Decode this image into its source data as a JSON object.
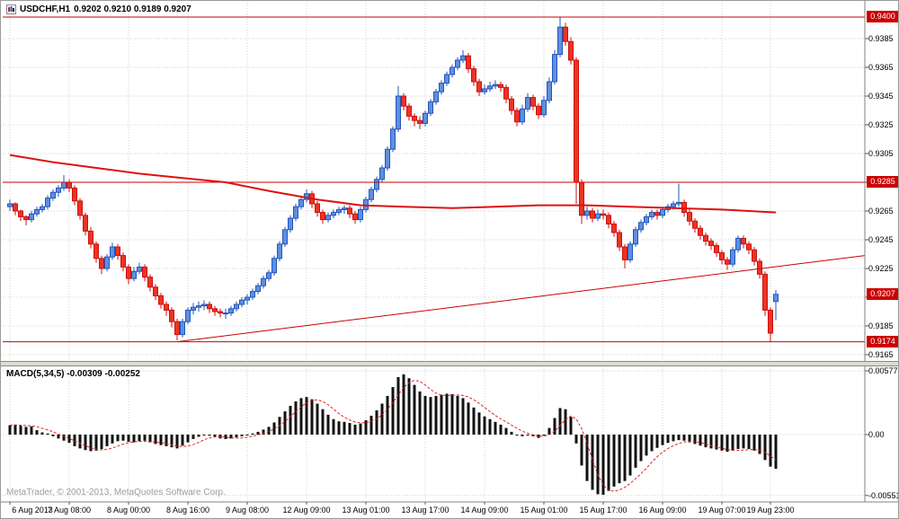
{
  "title": {
    "symbol_period": "USDCHF,H1",
    "ohlc": "0.9202 0.9210 0.9189 0.9207"
  },
  "indicator": {
    "name": "MACD(5,34,5)",
    "values": "-0.00309 -0.00252"
  },
  "watermark": "MetaTrader, © 2001-2013, MetaQuotes Software Corp.",
  "colors": {
    "bull_fill": "#5E8FE0",
    "bull_stroke": "#2255BB",
    "bear_fill": "#EE3322",
    "bear_stroke": "#CC1111",
    "line_red": "#CC0000",
    "ma_red": "#DD1111",
    "hist_black": "#111111",
    "signal_red": "#DD2222",
    "grid": "#D2D2D2",
    "badge_bg": "#CC0000"
  },
  "chart_data": {
    "type": "candlestick",
    "symbol": "USDCHF",
    "timeframe": "H1",
    "price_scale_factor": 0.0001,
    "price_axis": {
      "ticks": [
        {
          "p": 0.9385,
          "t": "0.9385"
        },
        {
          "p": 0.9365,
          "t": "0.9365"
        },
        {
          "p": 0.9345,
          "t": "0.9345"
        },
        {
          "p": 0.9325,
          "t": "0.9325"
        },
        {
          "p": 0.9305,
          "t": "0.9305"
        },
        {
          "p": 0.9285,
          "t": "0.9285"
        },
        {
          "p": 0.9265,
          "t": "0.9265"
        },
        {
          "p": 0.9245,
          "t": "0.9245"
        },
        {
          "p": 0.9225,
          "t": "0.9225"
        },
        {
          "p": 0.9205,
          "t": "0.9205"
        },
        {
          "p": 0.9185,
          "t": "0.9185"
        },
        {
          "p": 0.9165,
          "t": "0.9165"
        }
      ]
    },
    "price_badges": [
      {
        "p": 0.94,
        "t": "0.9400"
      },
      {
        "p": 0.9285,
        "t": "0.9285"
      },
      {
        "p": 0.9207,
        "t": "0.9207"
      },
      {
        "p": 0.9174,
        "t": "0.9174"
      }
    ],
    "bid": 0.9207,
    "hlines": [
      0.94,
      0.9285,
      0.9174
    ],
    "trendline": {
      "bar1": 31,
      "price1": 0.9174,
      "price2_at_plot_right": 0.9234
    },
    "ma_waypoints": [
      [
        0,
        9304
      ],
      [
        8,
        9299
      ],
      [
        16,
        9295
      ],
      [
        24,
        9291
      ],
      [
        32,
        9288
      ],
      [
        40,
        9285
      ],
      [
        48,
        9279
      ],
      [
        57,
        9273
      ],
      [
        65,
        9269
      ],
      [
        73,
        9268
      ],
      [
        82,
        9267
      ],
      [
        90,
        9268
      ],
      [
        98,
        9269
      ],
      [
        107,
        9269
      ],
      [
        115,
        9268
      ],
      [
        123,
        9267
      ],
      [
        132,
        9266
      ],
      [
        142,
        9264
      ]
    ],
    "time_axis": [
      {
        "bar": 0,
        "t": "6 Aug 2013"
      },
      {
        "bar": 11,
        "t": "7 Aug 08:00"
      },
      {
        "bar": 22,
        "t": "8 Aug 00:00"
      },
      {
        "bar": 33,
        "t": "8 Aug 16:00"
      },
      {
        "bar": 44,
        "t": "9 Aug 08:00"
      },
      {
        "bar": 55,
        "t": "12 Aug 09:00"
      },
      {
        "bar": 66,
        "t": "13 Aug 01:00"
      },
      {
        "bar": 77,
        "t": "13 Aug 17:00"
      },
      {
        "bar": 88,
        "t": "14 Aug 09:00"
      },
      {
        "bar": 99,
        "t": "15 Aug 01:00"
      },
      {
        "bar": 110,
        "t": "15 Aug 17:00"
      },
      {
        "bar": 121,
        "t": "16 Aug 09:00"
      },
      {
        "bar": 132,
        "t": "19 Aug 07:00"
      },
      {
        "bar": 141,
        "t": "19 Aug 23:00"
      }
    ],
    "candles": [
      [
        9268,
        9273,
        9265,
        9270
      ],
      [
        9270,
        9271,
        9262,
        9265
      ],
      [
        9265,
        9266,
        9258,
        9261
      ],
      [
        9261,
        9262,
        9255,
        9259
      ],
      [
        9259,
        9265,
        9257,
        9263
      ],
      [
        9263,
        9268,
        9261,
        9266
      ],
      [
        9266,
        9270,
        9264,
        9268
      ],
      [
        9268,
        9276,
        9266,
        9274
      ],
      [
        9274,
        9280,
        9272,
        9278
      ],
      [
        9278,
        9283,
        9275,
        9281
      ],
      [
        9281,
        9290,
        9279,
        9285
      ],
      [
        9285,
        9287,
        9278,
        9281
      ],
      [
        9281,
        9283,
        9269,
        9272
      ],
      [
        9272,
        9274,
        9259,
        9262
      ],
      [
        9262,
        9264,
        9248,
        9251
      ],
      [
        9251,
        9254,
        9239,
        9242
      ],
      [
        9242,
        9244,
        9229,
        9232
      ],
      [
        9232,
        9234,
        9221,
        9225
      ],
      [
        9225,
        9235,
        9223,
        9233
      ],
      [
        9233,
        9243,
        9231,
        9240
      ],
      [
        9240,
        9242,
        9231,
        9234
      ],
      [
        9234,
        9236,
        9223,
        9226
      ],
      [
        9226,
        9228,
        9214,
        9218
      ],
      [
        9218,
        9226,
        9216,
        9223
      ],
      [
        9223,
        9229,
        9221,
        9226
      ],
      [
        9226,
        9228,
        9216,
        9219
      ],
      [
        9219,
        9221,
        9209,
        9212
      ],
      [
        9212,
        9214,
        9203,
        9206
      ],
      [
        9206,
        9208,
        9197,
        9200
      ],
      [
        9200,
        9202,
        9192,
        9196
      ],
      [
        9196,
        9198,
        9184,
        9188
      ],
      [
        9188,
        9190,
        9175,
        9179
      ],
      [
        9179,
        9190,
        9177,
        9188
      ],
      [
        9188,
        9198,
        9186,
        9196
      ],
      [
        9196,
        9201,
        9193,
        9198
      ],
      [
        9198,
        9202,
        9195,
        9199
      ],
      [
        9199,
        9203,
        9196,
        9200
      ],
      [
        9200,
        9202,
        9194,
        9197
      ],
      [
        9197,
        9199,
        9192,
        9195
      ],
      [
        9195,
        9197,
        9191,
        9194
      ],
      [
        9194,
        9197,
        9190,
        9194
      ],
      [
        9194,
        9199,
        9192,
        9197
      ],
      [
        9197,
        9202,
        9195,
        9200
      ],
      [
        9200,
        9205,
        9198,
        9203
      ],
      [
        9203,
        9207,
        9200,
        9205
      ],
      [
        9205,
        9211,
        9203,
        9209
      ],
      [
        9209,
        9215,
        9207,
        9213
      ],
      [
        9213,
        9220,
        9211,
        9218
      ],
      [
        9218,
        9224,
        9216,
        9222
      ],
      [
        9222,
        9234,
        9220,
        9232
      ],
      [
        9232,
        9244,
        9230,
        9242
      ],
      [
        9242,
        9254,
        9240,
        9252
      ],
      [
        9252,
        9262,
        9250,
        9260
      ],
      [
        9260,
        9270,
        9258,
        9268
      ],
      [
        9268,
        9275,
        9266,
        9273
      ],
      [
        9273,
        9280,
        9271,
        9277
      ],
      [
        9277,
        9279,
        9267,
        9270
      ],
      [
        9270,
        9272,
        9261,
        9264
      ],
      [
        9264,
        9266,
        9256,
        9259
      ],
      [
        9259,
        9264,
        9257,
        9262
      ],
      [
        9262,
        9266,
        9260,
        9264
      ],
      [
        9264,
        9268,
        9262,
        9266
      ],
      [
        9266,
        9269,
        9263,
        9267
      ],
      [
        9267,
        9269,
        9260,
        9263
      ],
      [
        9263,
        9265,
        9256,
        9259
      ],
      [
        9259,
        9268,
        9257,
        9266
      ],
      [
        9266,
        9275,
        9264,
        9273
      ],
      [
        9273,
        9282,
        9271,
        9280
      ],
      [
        9280,
        9289,
        9278,
        9287
      ],
      [
        9287,
        9297,
        9285,
        9295
      ],
      [
        9295,
        9310,
        9293,
        9308
      ],
      [
        9308,
        9324,
        9306,
        9322
      ],
      [
        9322,
        9352,
        9320,
        9345
      ],
      [
        9345,
        9347,
        9335,
        9338
      ],
      [
        9338,
        9340,
        9328,
        9331
      ],
      [
        9331,
        9333,
        9324,
        9328
      ],
      [
        9328,
        9331,
        9322,
        9326
      ],
      [
        9326,
        9335,
        9324,
        9333
      ],
      [
        9333,
        9343,
        9331,
        9341
      ],
      [
        9341,
        9350,
        9339,
        9348
      ],
      [
        9348,
        9356,
        9346,
        9354
      ],
      [
        9354,
        9362,
        9352,
        9360
      ],
      [
        9360,
        9367,
        9358,
        9365
      ],
      [
        9365,
        9372,
        9363,
        9370
      ],
      [
        9370,
        9377,
        9368,
        9373
      ],
      [
        9373,
        9375,
        9361,
        9364
      ],
      [
        9364,
        9366,
        9352,
        9355
      ],
      [
        9355,
        9357,
        9345,
        9348
      ],
      [
        9348,
        9353,
        9346,
        9350
      ],
      [
        9350,
        9355,
        9348,
        9352
      ],
      [
        9352,
        9356,
        9350,
        9353
      ],
      [
        9353,
        9355,
        9348,
        9351
      ],
      [
        9351,
        9353,
        9340,
        9343
      ],
      [
        9343,
        9345,
        9332,
        9335
      ],
      [
        9335,
        9337,
        9324,
        9327
      ],
      [
        9327,
        9339,
        9325,
        9336
      ],
      [
        9336,
        9347,
        9334,
        9344
      ],
      [
        9344,
        9346,
        9335,
        9338
      ],
      [
        9338,
        9340,
        9329,
        9332
      ],
      [
        9332,
        9345,
        9330,
        9342
      ],
      [
        9342,
        9358,
        9340,
        9355
      ],
      [
        9355,
        9377,
        9353,
        9374
      ],
      [
        9374,
        9400,
        9372,
        9393
      ],
      [
        9393,
        9396,
        9380,
        9383
      ],
      [
        9383,
        9386,
        9367,
        9370
      ],
      [
        9370,
        9372,
        9270,
        9285
      ],
      [
        9285,
        9287,
        9256,
        9262
      ],
      [
        9262,
        9268,
        9259,
        9265
      ],
      [
        9265,
        9267,
        9257,
        9260
      ],
      [
        9260,
        9266,
        9258,
        9263
      ],
      [
        9263,
        9266,
        9259,
        9262
      ],
      [
        9262,
        9264,
        9253,
        9256
      ],
      [
        9256,
        9258,
        9247,
        9250
      ],
      [
        9250,
        9252,
        9237,
        9240
      ],
      [
        9240,
        9242,
        9225,
        9231
      ],
      [
        9231,
        9244,
        9229,
        9242
      ],
      [
        9242,
        9254,
        9240,
        9252
      ],
      [
        9252,
        9259,
        9250,
        9257
      ],
      [
        9257,
        9263,
        9255,
        9261
      ],
      [
        9261,
        9266,
        9259,
        9264
      ],
      [
        9264,
        9266,
        9259,
        9262
      ],
      [
        9262,
        9268,
        9260,
        9266
      ],
      [
        9266,
        9270,
        9264,
        9268
      ],
      [
        9268,
        9272,
        9266,
        9270
      ],
      [
        9270,
        9284,
        9268,
        9271
      ],
      [
        9271,
        9273,
        9261,
        9264
      ],
      [
        9264,
        9266,
        9255,
        9258
      ],
      [
        9258,
        9260,
        9250,
        9253
      ],
      [
        9253,
        9255,
        9245,
        9248
      ],
      [
        9248,
        9250,
        9241,
        9244
      ],
      [
        9244,
        9246,
        9238,
        9241
      ],
      [
        9241,
        9243,
        9233,
        9236
      ],
      [
        9236,
        9238,
        9228,
        9231
      ],
      [
        9231,
        9233,
        9224,
        9228
      ],
      [
        9228,
        9240,
        9226,
        9238
      ],
      [
        9238,
        9248,
        9236,
        9246
      ],
      [
        9246,
        9248,
        9239,
        9242
      ],
      [
        9242,
        9244,
        9235,
        9238
      ],
      [
        9238,
        9240,
        9227,
        9230
      ],
      [
        9230,
        9232,
        9218,
        9221
      ],
      [
        9221,
        9223,
        9192,
        9196
      ],
      [
        9196,
        9198,
        9174,
        9180
      ],
      [
        9202,
        9210,
        9189,
        9207
      ]
    ],
    "macd": {
      "label": "MACD(5,34,5)",
      "main_value": -0.00309,
      "signal_value": -0.00252,
      "scale_factor": 1e-05,
      "signal_sma": 5,
      "axis": [
        {
          "v": 0.00577,
          "t": "0.00577"
        },
        {
          "v": 0,
          "t": "0.00"
        },
        {
          "v": -0.00551,
          "t": "-0.00551"
        }
      ],
      "main_scaled": [
        85,
        90,
        80,
        70,
        75,
        40,
        20,
        10,
        -15,
        -35,
        -55,
        -75,
        -105,
        -125,
        -140,
        -150,
        -145,
        -130,
        -105,
        -80,
        -60,
        -55,
        -65,
        -70,
        -60,
        -55,
        -70,
        -85,
        -95,
        -105,
        -115,
        -125,
        -100,
        -70,
        -40,
        -20,
        -5,
        -10,
        -25,
        -35,
        -40,
        -35,
        -25,
        -15,
        -5,
        10,
        25,
        45,
        70,
        110,
        160,
        210,
        260,
        300,
        330,
        340,
        320,
        280,
        230,
        180,
        140,
        120,
        115,
        105,
        90,
        100,
        130,
        170,
        220,
        280,
        350,
        430,
        520,
        545,
        510,
        450,
        390,
        350,
        340,
        350,
        360,
        370,
        365,
        350,
        330,
        290,
        245,
        200,
        165,
        140,
        115,
        90,
        60,
        25,
        -5,
        -15,
        -5,
        -15,
        -30,
        -10,
        60,
        150,
        240,
        230,
        160,
        -80,
        -280,
        -420,
        -500,
        -540,
        -545,
        -510,
        -470,
        -440,
        -420,
        -370,
        -300,
        -240,
        -190,
        -150,
        -120,
        -95,
        -75,
        -60,
        -50,
        -55,
        -70,
        -85,
        -100,
        -115,
        -125,
        -135,
        -145,
        -155,
        -145,
        -130,
        -125,
        -130,
        -145,
        -175,
        -230,
        -290,
        -309
      ]
    }
  }
}
